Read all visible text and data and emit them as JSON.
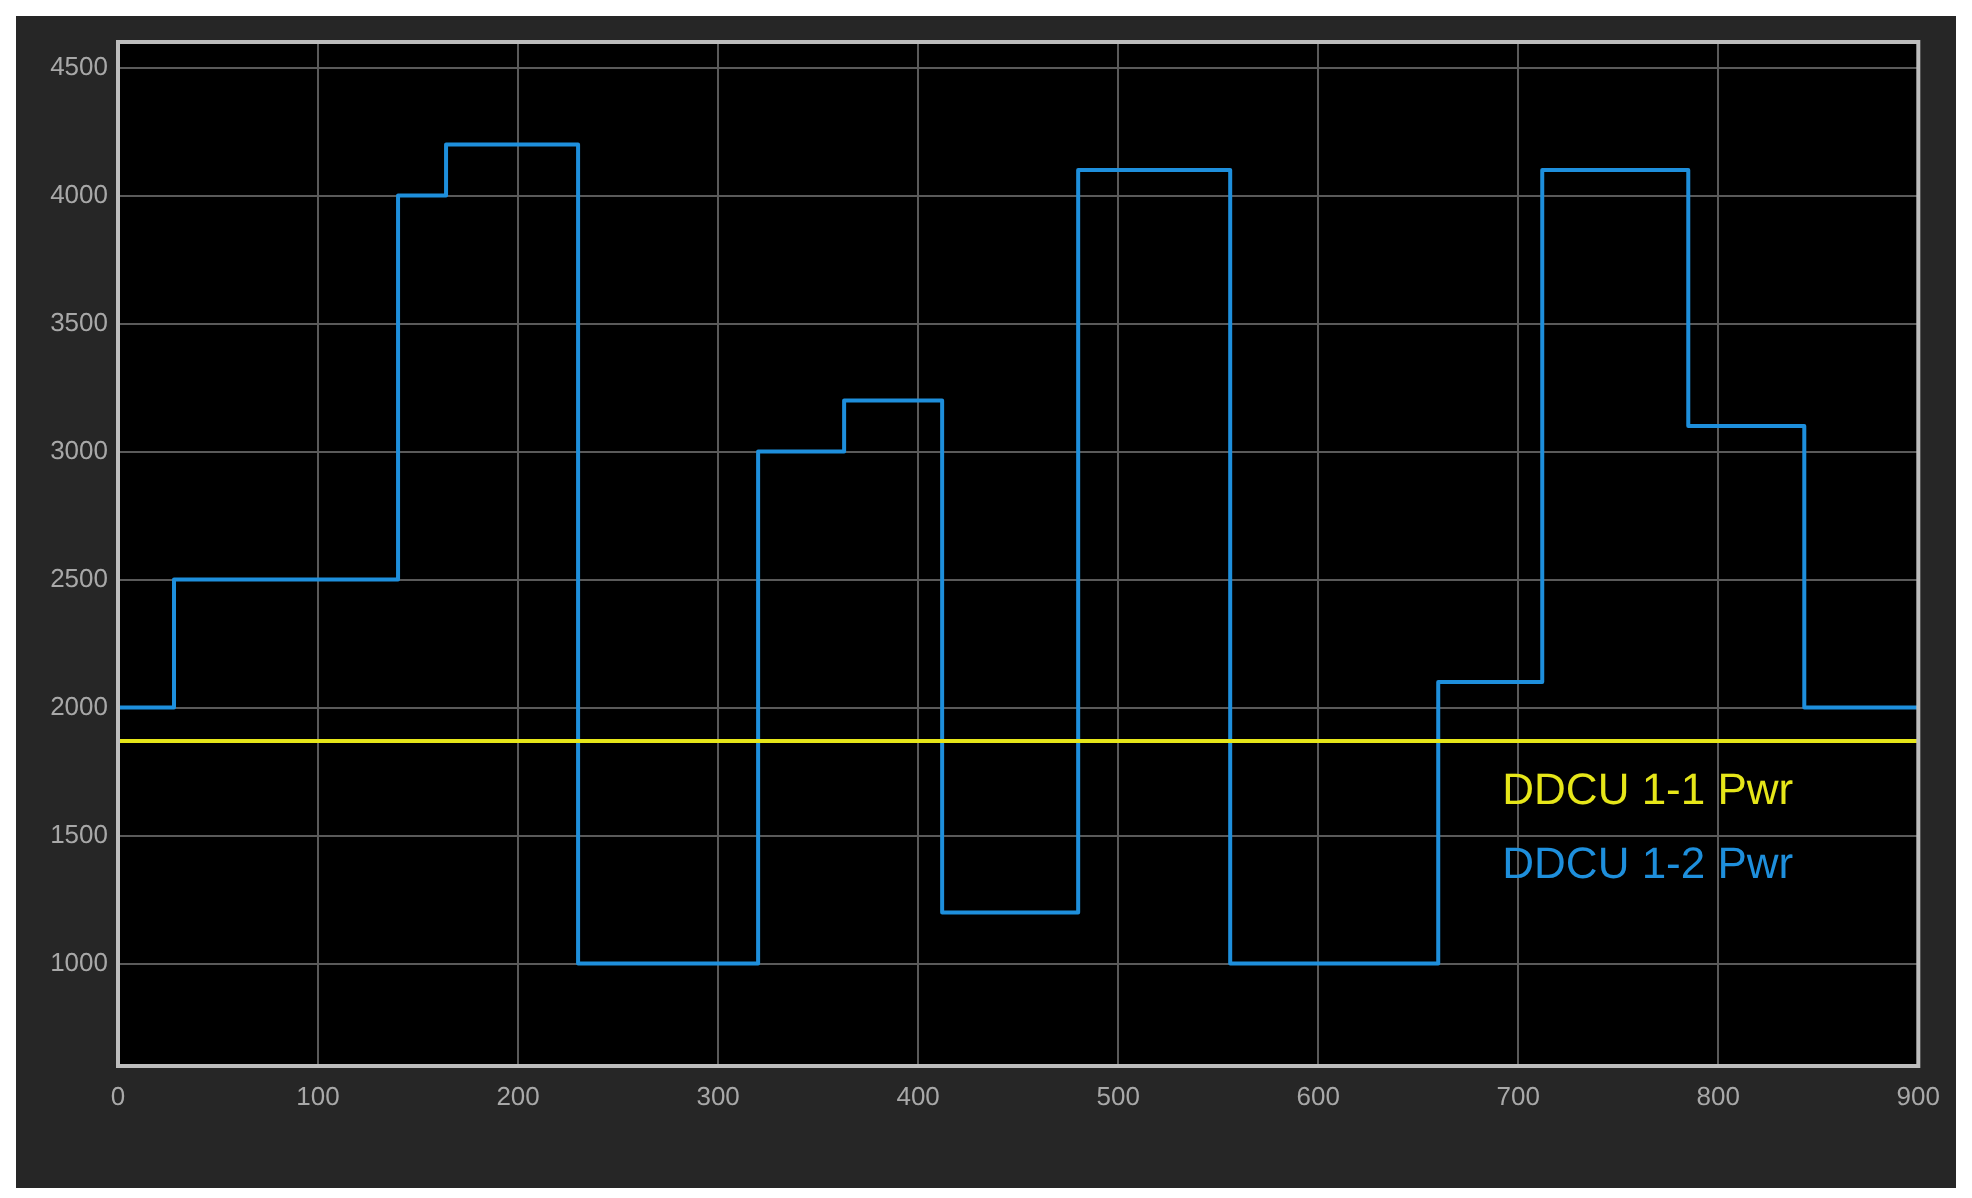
{
  "chart_data": {
    "type": "step",
    "xlim": [
      0,
      900
    ],
    "xticks": [
      0,
      100,
      200,
      300,
      400,
      500,
      600,
      700,
      800,
      900
    ],
    "ylim": [
      600,
      4600
    ],
    "yticks": [
      1000,
      1500,
      2000,
      2500,
      3000,
      3500,
      4000,
      4500
    ],
    "grid": true,
    "legend": "bottom right",
    "series": [
      {
        "name": "DDCU 1-1 Pwr",
        "type": "line",
        "color": "#e6e619",
        "x": [
          0,
          900
        ],
        "values": [
          1870,
          1870
        ]
      },
      {
        "name": "DDCU 1-2 Pwr",
        "type": "step",
        "color": "#1e8fdc",
        "x": [
          0,
          28,
          140,
          164,
          230,
          320,
          363,
          412,
          480,
          556,
          660,
          712,
          785,
          843,
          900
        ],
        "values": [
          2000,
          2500,
          4000,
          4200,
          1000,
          3000,
          3200,
          1200,
          4100,
          1000,
          2100,
          4100,
          3100,
          2000,
          2000
        ]
      }
    ]
  }
}
